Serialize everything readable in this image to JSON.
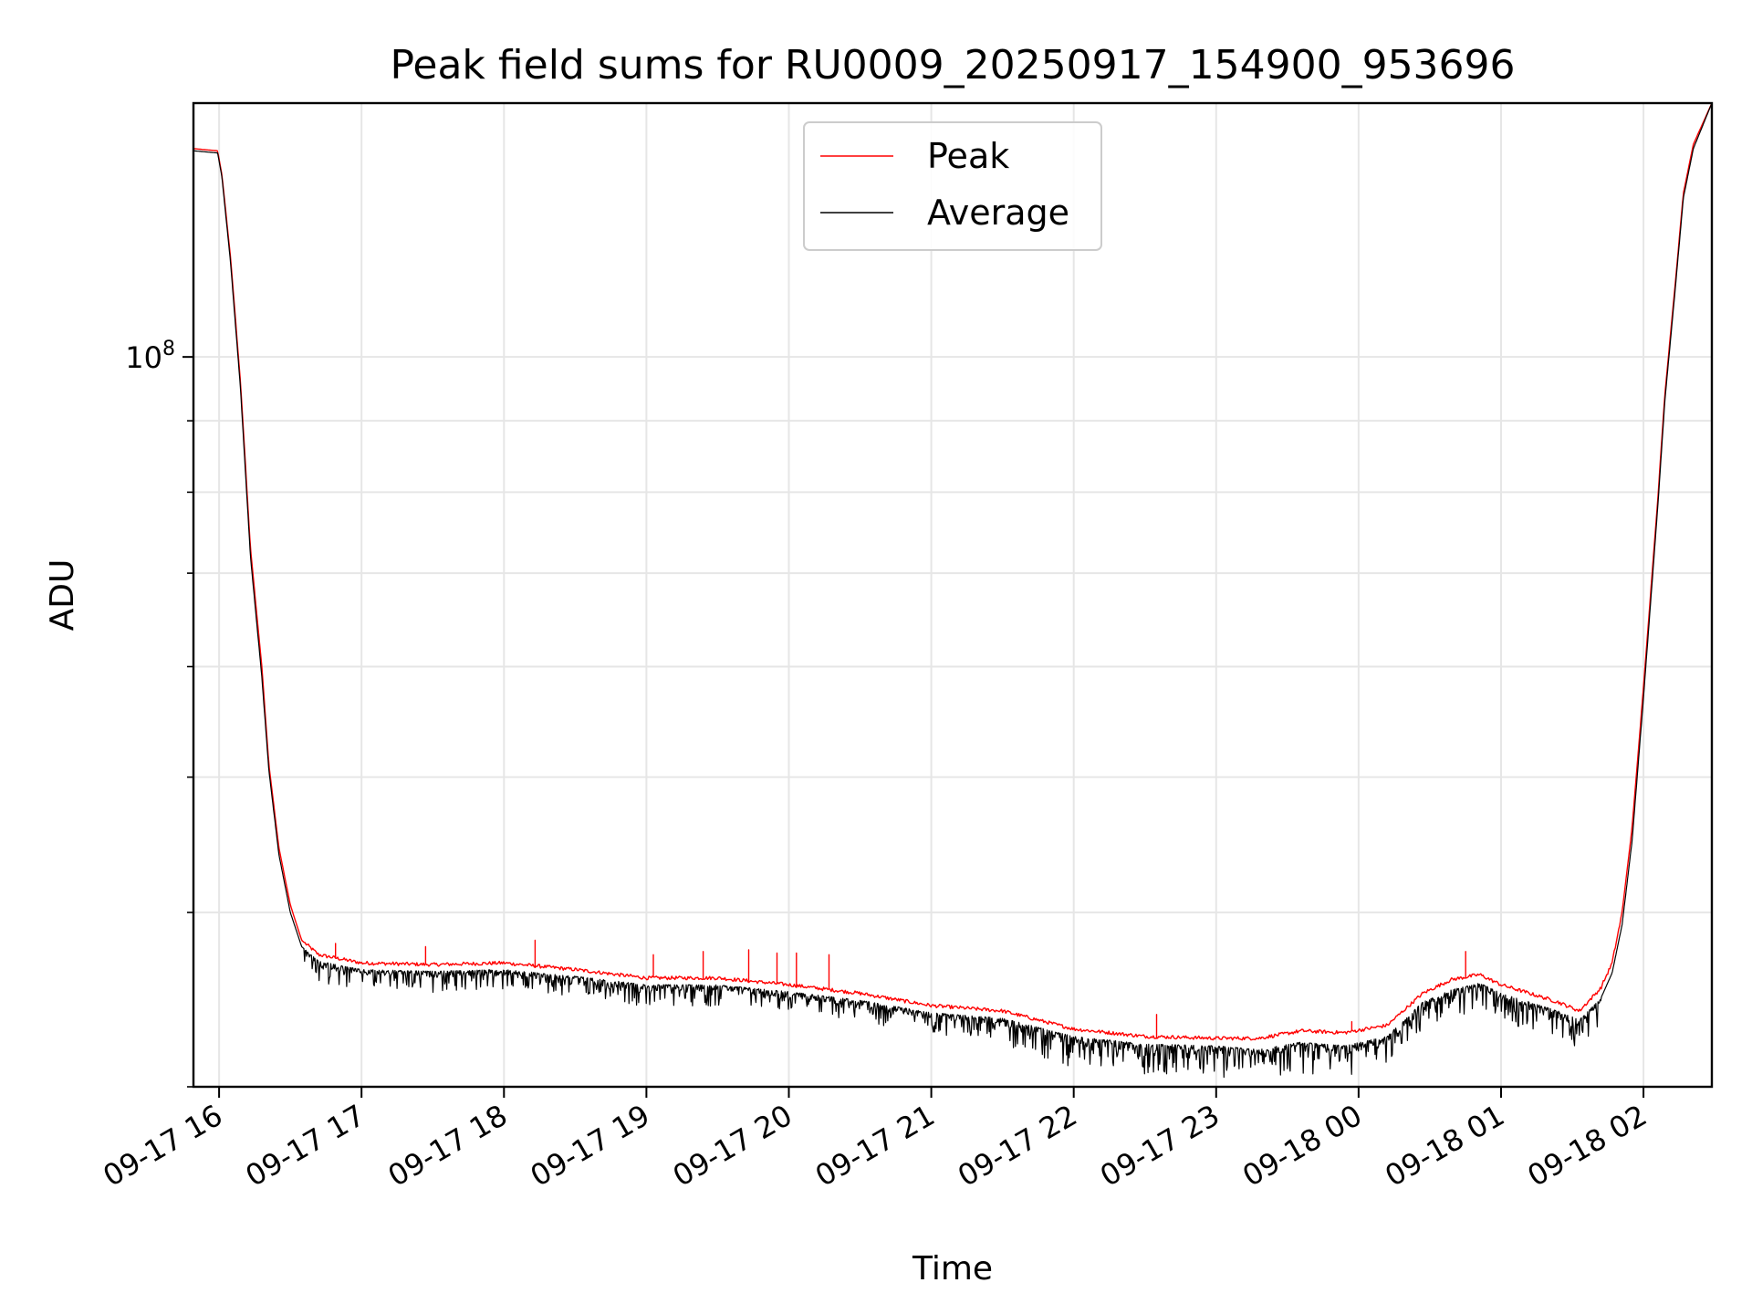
{
  "chart_data": {
    "type": "line",
    "title": "Peak field sums for RU0009_20250917_154900_953696",
    "xlabel": "Time",
    "ylabel": "ADU",
    "yscale": "log",
    "ylim": [
      30000000,
      152000000
    ],
    "xlim_hours": [
      15.82,
      26.48
    ],
    "grid": true,
    "legend_position": "top-center",
    "x_ticks": [
      {
        "hour": 16,
        "label": "09-17 16"
      },
      {
        "hour": 17,
        "label": "09-17 17"
      },
      {
        "hour": 18,
        "label": "09-17 18"
      },
      {
        "hour": 19,
        "label": "09-17 19"
      },
      {
        "hour": 20,
        "label": "09-17 20"
      },
      {
        "hour": 21,
        "label": "09-17 21"
      },
      {
        "hour": 22,
        "label": "09-17 22"
      },
      {
        "hour": 23,
        "label": "09-17 23"
      },
      {
        "hour": 24,
        "label": "09-18 00"
      },
      {
        "hour": 25,
        "label": "09-18 01"
      },
      {
        "hour": 26,
        "label": "09-18 02"
      }
    ],
    "y_major_tick": {
      "value": 100000000,
      "base": "10",
      "exponent": "8"
    },
    "y_minor_ticks": [
      30000000,
      40000000,
      50000000,
      60000000,
      70000000,
      80000000,
      90000000
    ],
    "series": [
      {
        "name": "Peak",
        "color": "#ff0000",
        "points": [
          [
            15.82,
            141000000
          ],
          [
            15.99,
            140500000
          ],
          [
            16.02,
            135000000
          ],
          [
            16.08,
            118000000
          ],
          [
            16.15,
            96000000
          ],
          [
            16.22,
            73000000
          ],
          [
            16.3,
            60000000
          ],
          [
            16.35,
            51000000
          ],
          [
            16.42,
            44500000
          ],
          [
            16.5,
            40500000
          ],
          [
            16.58,
            38200000
          ],
          [
            16.7,
            37300000
          ],
          [
            17.0,
            36800000
          ],
          [
            17.5,
            36700000
          ],
          [
            18.0,
            36800000
          ],
          [
            18.5,
            36400000
          ],
          [
            19.0,
            35900000
          ],
          [
            19.5,
            35900000
          ],
          [
            20.0,
            35500000
          ],
          [
            20.5,
            35000000
          ],
          [
            21.0,
            34300000
          ],
          [
            21.5,
            34000000
          ],
          [
            22.0,
            33000000
          ],
          [
            22.5,
            32600000
          ],
          [
            23.0,
            32500000
          ],
          [
            23.3,
            32500000
          ],
          [
            23.6,
            32900000
          ],
          [
            23.9,
            32800000
          ],
          [
            24.2,
            33200000
          ],
          [
            24.45,
            35000000
          ],
          [
            24.65,
            35800000
          ],
          [
            24.85,
            36100000
          ],
          [
            25.0,
            35500000
          ],
          [
            25.2,
            35000000
          ],
          [
            25.4,
            34500000
          ],
          [
            25.55,
            34000000
          ],
          [
            25.7,
            35300000
          ],
          [
            25.78,
            36800000
          ],
          [
            25.85,
            40000000
          ],
          [
            25.92,
            46000000
          ],
          [
            26.0,
            58000000
          ],
          [
            26.1,
            79000000
          ],
          [
            26.15,
            94000000
          ],
          [
            26.22,
            112000000
          ],
          [
            26.28,
            131000000
          ],
          [
            26.35,
            142000000
          ],
          [
            26.48,
            152000000
          ]
        ],
        "spikes": [
          [
            16.82,
            38000000
          ],
          [
            17.45,
            37800000
          ],
          [
            18.22,
            38200000
          ],
          [
            19.05,
            37300000
          ],
          [
            19.4,
            37500000
          ],
          [
            19.72,
            37600000
          ],
          [
            19.92,
            37400000
          ],
          [
            20.05,
            37400000
          ],
          [
            20.28,
            37300000
          ],
          [
            22.58,
            33800000
          ],
          [
            23.95,
            33400000
          ],
          [
            24.75,
            37500000
          ]
        ]
      },
      {
        "name": "Average",
        "color": "#000000",
        "points": [
          [
            15.82,
            140500000
          ],
          [
            15.99,
            140000000
          ],
          [
            16.02,
            134500000
          ],
          [
            16.08,
            117000000
          ],
          [
            16.15,
            95000000
          ],
          [
            16.22,
            72000000
          ],
          [
            16.3,
            59000000
          ],
          [
            16.35,
            50500000
          ],
          [
            16.42,
            44000000
          ],
          [
            16.5,
            40000000
          ],
          [
            16.58,
            37800000
          ],
          [
            16.7,
            36900000
          ],
          [
            17.0,
            36400000
          ],
          [
            17.5,
            36300000
          ],
          [
            18.0,
            36400000
          ],
          [
            18.5,
            36000000
          ],
          [
            19.0,
            35500000
          ],
          [
            19.5,
            35500000
          ],
          [
            20.0,
            35100000
          ],
          [
            20.5,
            34600000
          ],
          [
            21.0,
            33900000
          ],
          [
            21.5,
            33600000
          ],
          [
            22.0,
            32600000
          ],
          [
            22.5,
            32200000
          ],
          [
            23.0,
            32100000
          ],
          [
            23.3,
            31900000
          ],
          [
            23.6,
            32300000
          ],
          [
            23.9,
            32100000
          ],
          [
            24.2,
            32600000
          ],
          [
            24.45,
            34500000
          ],
          [
            24.65,
            35200000
          ],
          [
            24.85,
            35600000
          ],
          [
            25.0,
            35000000
          ],
          [
            25.2,
            34500000
          ],
          [
            25.4,
            34000000
          ],
          [
            25.55,
            33500000
          ],
          [
            25.7,
            34700000
          ],
          [
            25.78,
            36200000
          ],
          [
            25.85,
            39200000
          ],
          [
            25.92,
            45000000
          ],
          [
            26.0,
            57000000
          ],
          [
            26.1,
            78000000
          ],
          [
            26.15,
            93000000
          ],
          [
            26.22,
            111000000
          ],
          [
            26.28,
            130000000
          ],
          [
            26.35,
            141000000
          ],
          [
            26.48,
            152000000
          ]
        ],
        "noise_regions": [
          {
            "from": 16.6,
            "to": 21.5,
            "dip_fraction": 0.035
          },
          {
            "from": 21.5,
            "to": 24.3,
            "dip_fraction": 0.05
          },
          {
            "from": 24.3,
            "to": 25.7,
            "dip_fraction": 0.045
          }
        ]
      }
    ]
  }
}
